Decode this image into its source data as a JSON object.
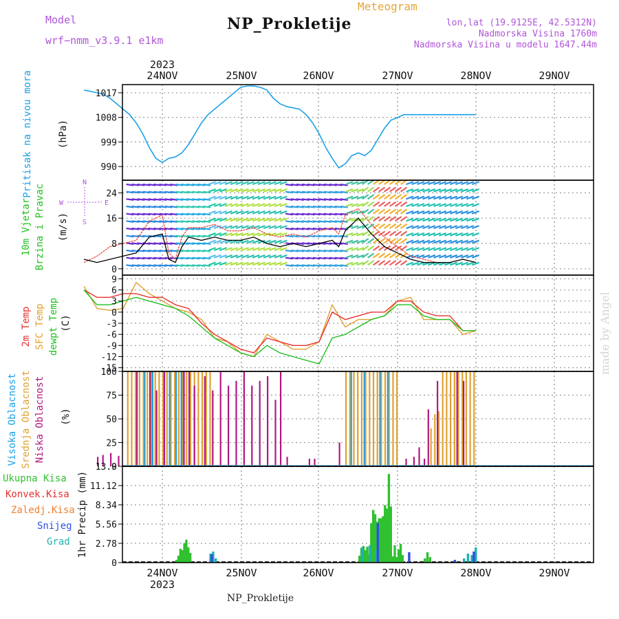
{
  "header": {
    "model_label": "Model",
    "model_name": "wrf−nmm_v3.9.1  e1km",
    "meteogram_label": "Meteogram",
    "station_name": "NP_Prokletije",
    "coords": "lon,lat (19.9125E, 42.5312N)",
    "altitude": "Nadmorska Visina 1760m",
    "model_altitude": "Nadmorska Visina u modelu 1647.44m"
  },
  "footer": {
    "station_name": "NP_Prokletije",
    "watermark": "made by Angel"
  },
  "time_axis": {
    "year": "2023",
    "days": [
      "24NOV",
      "25NOV",
      "26NOV",
      "27NOV",
      "28NOV",
      "29NOV"
    ]
  },
  "colors": {
    "pressure": "#1aa0e8",
    "temp_2m": "#e83030",
    "temp_sfc": "#e0a030",
    "dewpoint": "#22c020",
    "cloud_high": "#1aa0e8",
    "cloud_mid": "#e0a030",
    "cloud_low": "#b01880",
    "precip_total": "#30c030",
    "precip_conv": "#e83030",
    "precip_frozen": "#f08030",
    "precip_snow": "#3050e0",
    "precip_graupel": "#20b0b0",
    "wind_line": "#000000",
    "gust_line": "#e84030"
  },
  "chart_data": [
    {
      "type": "line",
      "panel": "pressure",
      "ylabel_main": "Pritisak na nivou mora",
      "ylabel_unit": "(hPa)",
      "yticks": [
        "1017",
        "1008",
        "999",
        "990"
      ],
      "ylim": [
        985,
        1020
      ],
      "x": [
        0,
        0.5,
        1,
        1.5,
        2,
        2.5,
        3,
        3.5,
        4,
        4.5,
        5,
        5.5,
        6,
        6.5,
        7,
        7.5,
        8,
        8.5,
        9,
        9.5,
        10,
        10.5,
        11,
        11.5,
        12,
        12.5,
        13,
        13.5,
        14,
        14.5,
        15,
        15.5,
        16,
        16.5,
        17,
        17.5,
        18,
        18.5,
        19,
        19.5,
        20,
        20.5,
        21,
        21.5,
        22,
        22.5,
        23,
        23.5,
        24,
        24.5,
        25,
        25.5,
        26,
        26.5,
        27,
        27.5,
        28,
        28.5,
        29,
        29.5,
        30
      ],
      "values": [
        1018,
        1017.5,
        1017,
        1016.5,
        1015,
        1013,
        1011,
        1009,
        1006,
        1002,
        997,
        993,
        991.5,
        993,
        993.5,
        995,
        998,
        1002,
        1006,
        1009,
        1011,
        1013,
        1015,
        1017,
        1019,
        1019.5,
        1019.5,
        1019,
        1018,
        1015,
        1013,
        1012,
        1011.5,
        1011,
        1009,
        1006,
        1002,
        997,
        993,
        989.5,
        991,
        994,
        995,
        994,
        996,
        1000,
        1004,
        1007,
        1008,
        1009,
        1009,
        1009,
        1009,
        1009,
        1009,
        1009,
        1009,
        1009,
        1009,
        1009,
        1009
      ]
    },
    {
      "type": "line",
      "panel": "wind",
      "ylabel_main": "10m Vjetar",
      "ylabel_main2": "Brzina i Pravac",
      "ylabel_unit": "(m/s)",
      "compass": [
        "N",
        "W",
        "E",
        "S"
      ],
      "yticks": [
        "24",
        "16",
        "8",
        "0"
      ],
      "ylim": [
        -2,
        28
      ],
      "series": [
        {
          "x": [
            0,
            1,
            2,
            3,
            4,
            5,
            6,
            6.5,
            7,
            7.5,
            8,
            9,
            10,
            11,
            12,
            13,
            14,
            15,
            16,
            17,
            18,
            19,
            19.5,
            20,
            21,
            22,
            23,
            24,
            25,
            26,
            27,
            28,
            29,
            30
          ],
          "values": [
            3,
            2,
            3,
            4,
            5,
            10,
            11,
            3,
            2,
            7,
            10,
            9,
            10,
            9,
            9,
            10,
            8,
            7,
            8,
            7,
            8,
            9,
            7,
            12,
            16,
            11,
            7,
            5,
            3,
            2,
            2,
            2,
            3,
            2
          ]
        },
        {
          "x": [
            0,
            1,
            2,
            3,
            4,
            5,
            6,
            6.5,
            7,
            7.5,
            8,
            9,
            10,
            11,
            12,
            13,
            14,
            15,
            16,
            17,
            18,
            19,
            19.5,
            20,
            21,
            22,
            23,
            24,
            25,
            26,
            27,
            28,
            29,
            30
          ],
          "values": [
            2,
            4,
            7,
            8,
            9,
            15,
            17,
            5,
            3,
            10,
            13,
            13,
            14,
            12,
            12,
            13,
            11,
            10,
            11,
            10,
            12,
            13,
            11,
            17,
            19,
            14,
            10,
            7,
            4,
            3,
            2,
            2,
            3,
            2
          ]
        }
      ]
    },
    {
      "type": "line",
      "panel": "temperature",
      "ylabel_main": "2m Temp",
      "ylabel_main2": "SFC Temp",
      "ylabel_main3": "dewpt Temp",
      "ylabel_unit": "(C)",
      "yticks": [
        "9",
        "6",
        "3",
        "0",
        "-3",
        "-6",
        "-9",
        "-12",
        "-15"
      ],
      "ylim": [
        -16,
        10
      ],
      "series": [
        {
          "name": "2m Temp",
          "x": [
            0,
            1,
            2,
            3,
            4,
            5,
            6,
            7,
            8,
            9,
            10,
            11,
            12,
            13,
            14,
            15,
            16,
            17,
            18,
            19,
            20,
            21,
            22,
            23,
            24,
            25,
            26,
            27,
            28,
            29,
            30
          ],
          "values": [
            6,
            4,
            4,
            5,
            5,
            4,
            4,
            2,
            1,
            -3,
            -6,
            -8,
            -10,
            -11,
            -7,
            -8,
            -9,
            -9,
            -8,
            0,
            -2,
            -1,
            0,
            0,
            3,
            3,
            0,
            -1,
            -1,
            -5,
            -5
          ]
        },
        {
          "name": "SFC Temp",
          "x": [
            0,
            1,
            2,
            3,
            4,
            5,
            6,
            7,
            8,
            9,
            10,
            11,
            12,
            13,
            14,
            15,
            16,
            17,
            18,
            19,
            20,
            21,
            22,
            23,
            24,
            25,
            26,
            27,
            28,
            29,
            30
          ],
          "values": [
            7,
            1,
            0.5,
            1,
            8,
            5,
            3,
            1,
            0,
            -2,
            -7,
            -8,
            -11,
            -12,
            -6,
            -8,
            -10,
            -10,
            -8,
            2,
            -4,
            -2,
            -2,
            -1,
            3,
            4,
            -2,
            -2,
            -2,
            -6,
            -5
          ]
        },
        {
          "name": "dewpt Temp",
          "x": [
            0,
            1,
            2,
            3,
            4,
            5,
            6,
            7,
            8,
            9,
            10,
            11,
            12,
            13,
            14,
            15,
            16,
            17,
            18,
            19,
            20,
            21,
            22,
            23,
            24,
            25,
            26,
            27,
            28,
            29,
            30
          ],
          "values": [
            6,
            2,
            2,
            3,
            4,
            3,
            2,
            1,
            -1,
            -4,
            -7,
            -9,
            -11,
            -12,
            -9,
            -11,
            -12,
            -13,
            -14,
            -7,
            -6,
            -4,
            -2,
            -1,
            2,
            2,
            -1,
            -2,
            -2,
            -5,
            -5
          ]
        }
      ]
    },
    {
      "type": "bar",
      "panel": "clouds",
      "ylabel_main": "Visoka Oblacnost",
      "ylabel_main2": "Srednja Oblacnost",
      "ylabel_main3": "Niska  Oblacnost",
      "ylabel_unit": "(%)",
      "yticks": [
        "100",
        "75",
        "50",
        "25",
        "0"
      ],
      "ylim": [
        0,
        100
      ],
      "series": [
        {
          "name": "Srednja Oblacnost",
          "x": [
            3.3,
            3.6,
            3.9,
            4.2,
            4.5,
            4.8,
            5.1,
            5.4,
            5.7,
            6,
            6.3,
            6.6,
            6.9,
            7.2,
            7.5,
            7.8,
            8.1,
            8.4,
            8.7,
            9,
            9.3,
            9.6,
            20,
            20.3,
            20.6,
            20.9,
            21.2,
            21.5,
            21.8,
            22.1,
            22.4,
            22.7,
            23.0,
            23.3,
            23.6,
            23.9,
            26.5,
            26.8,
            27.1,
            27.4,
            27.7,
            28.0,
            28.3,
            28.6,
            28.9,
            29.2,
            29.5,
            29.8
          ],
          "values": [
            100,
            100,
            100,
            100,
            100,
            100,
            100,
            100,
            100,
            100,
            100,
            100,
            100,
            100,
            100,
            100,
            100,
            100,
            100,
            100,
            100,
            100,
            100,
            100,
            100,
            100,
            100,
            100,
            100,
            100,
            100,
            100,
            100,
            100,
            100,
            100,
            40,
            55,
            58,
            100,
            100,
            100,
            100,
            100,
            100,
            100,
            100,
            100
          ]
        },
        {
          "name": "Visoka Oblacnost",
          "x": [
            4.6,
            5.2,
            6.5,
            7.0,
            7.4,
            20.4,
            21.4,
            22.6,
            23.2
          ],
          "values": [
            100,
            100,
            100,
            100,
            100,
            100,
            100,
            100,
            100
          ]
        },
        {
          "name": "Niska  Oblacnost",
          "x": [
            1.0,
            1.4,
            2.0,
            2.6,
            4.0,
            5.0,
            5.5,
            6.1,
            7.6,
            8.0,
            8.4,
            9.2,
            9.8,
            10.4,
            11.0,
            11.6,
            12.2,
            12.8,
            13.4,
            14.0,
            14.6,
            15.0,
            15.5,
            17.2,
            17.6,
            19.5,
            24.6,
            25.2,
            25.6,
            26.0,
            26.3,
            27.0,
            28.5,
            29.0
          ],
          "values": [
            10,
            12,
            14,
            11,
            100,
            100,
            80,
            100,
            100,
            100,
            85,
            95,
            80,
            100,
            85,
            90,
            100,
            85,
            90,
            95,
            70,
            100,
            10,
            8,
            8,
            25,
            8,
            10,
            20,
            8,
            60,
            90,
            100,
            90
          ]
        }
      ]
    },
    {
      "type": "bar",
      "panel": "precipitation",
      "ylabel_main": "1hr Precip (mm)",
      "legend": [
        "Ukupna  Kisa",
        "Konvek.Kisa",
        "Zaledj.Kisa",
        "Snijeg",
        "Grad"
      ],
      "yticks": [
        "13.9",
        "11.12",
        "8.34",
        "5.56",
        "2.78",
        "0"
      ],
      "ylim": [
        0,
        13.9
      ],
      "series": [
        {
          "name": "Ukupna  Kisa",
          "x": [
            7.0,
            7.15,
            7.3,
            7.45,
            7.6,
            7.75,
            7.9,
            8.05,
            21.0,
            21.15,
            21.3,
            21.45,
            21.6,
            21.75,
            21.9,
            22.05,
            22.2,
            22.35,
            22.5,
            22.65,
            22.8,
            22.95,
            23.1,
            23.25,
            23.4,
            23.55,
            23.7,
            23.85,
            24.0,
            24.15,
            24.3,
            26.0,
            26.2,
            26.4
          ],
          "values": [
            0.4,
            1.0,
            2.0,
            1.8,
            2.8,
            3.3,
            2.2,
            1.4,
            1.0,
            2.1,
            2.4,
            1.8,
            2.3,
            1.2,
            5.7,
            7.6,
            7.0,
            5.9,
            6.4,
            6.4,
            6.7,
            8.3,
            7.8,
            12.8,
            8.1,
            0.9,
            2.5,
            0.8,
            1.9,
            2.7,
            1.1,
            0.6,
            1.5,
            0.8
          ]
        },
        {
          "name": "Grad",
          "x": [
            9.6,
            9.8,
            10.0,
            21.2,
            21.8,
            22.3,
            29.0,
            29.3,
            29.6,
            29.9
          ],
          "values": [
            1.3,
            1.6,
            0.6,
            2.2,
            2.5,
            1.8,
            0.6,
            1.3,
            1.1,
            2.2
          ]
        },
        {
          "name": "Snijeg",
          "x": [
            9.7,
            22.4,
            24.8,
            28.3,
            29.75
          ],
          "values": [
            1.2,
            5.7,
            1.5,
            0.4,
            1.6
          ]
        }
      ]
    }
  ]
}
